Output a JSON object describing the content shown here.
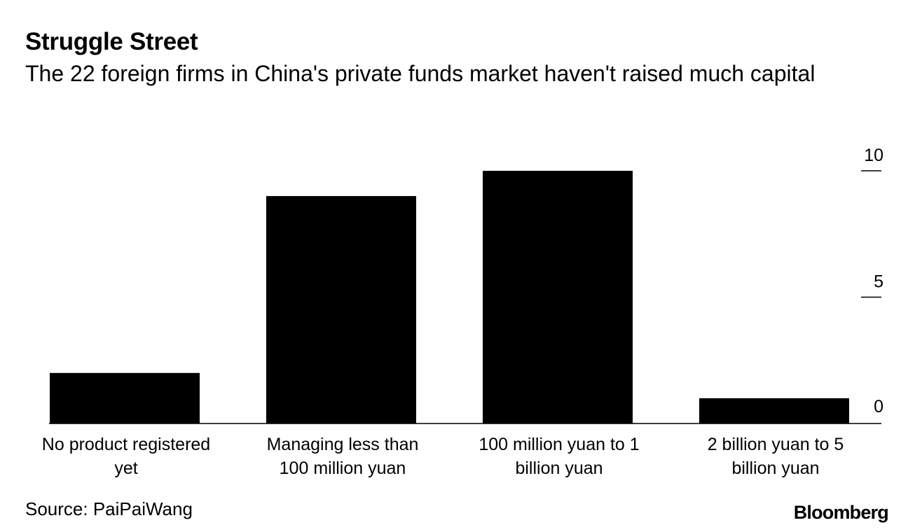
{
  "header": {
    "title": "Struggle Street",
    "subtitle": "The 22 foreign firms in China's private funds market haven't raised much capital"
  },
  "footer": {
    "source": "Source: PaiPaiWang",
    "logo": "Bloomberg"
  },
  "colors": {
    "bar": "#000000",
    "axis": "#000000",
    "text": "#000000"
  },
  "chart_data": {
    "type": "bar",
    "title": "Struggle Street",
    "subtitle": "The 22 foreign firms in China's private funds market haven't raised much capital",
    "categories": [
      [
        "No product registered",
        "yet"
      ],
      [
        "Managing less than",
        "100 million yuan"
      ],
      [
        "100 million yuan to 1",
        "billion yuan"
      ],
      [
        "2 billion yuan to 5",
        "billion yuan"
      ]
    ],
    "values": [
      2,
      9,
      10,
      1
    ],
    "ylim": [
      0,
      10
    ],
    "yticks": [
      0,
      5,
      10
    ],
    "xlabel": "",
    "ylabel": "",
    "grid": false,
    "y_axis_side": "right"
  }
}
